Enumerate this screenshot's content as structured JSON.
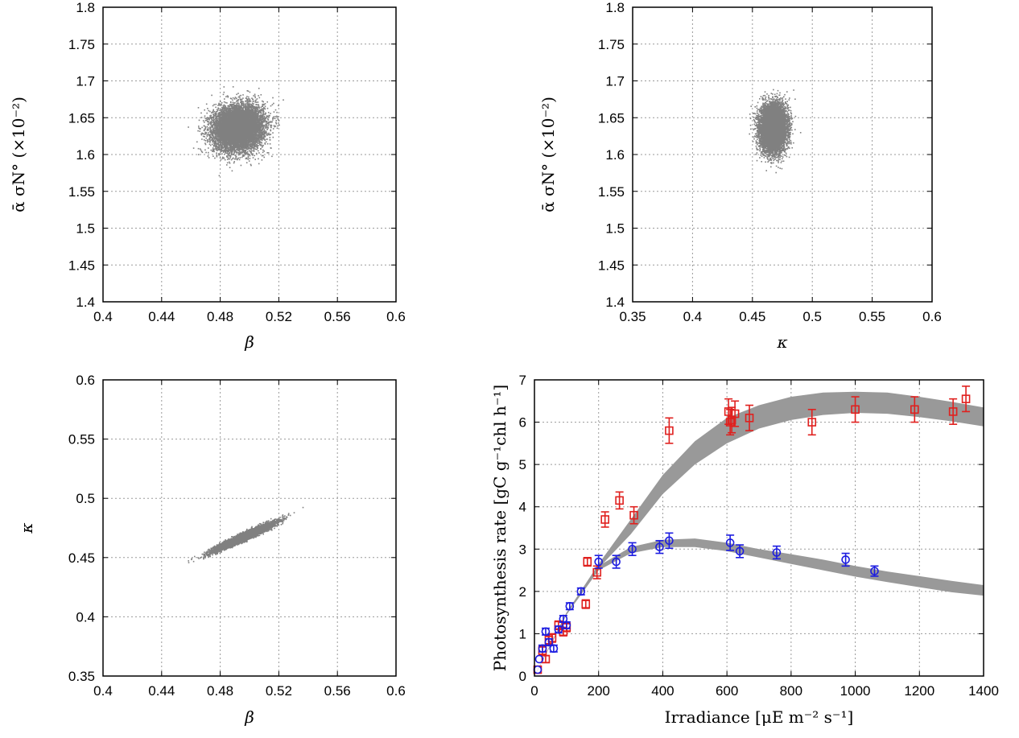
{
  "chart_data": [
    {
      "id": "p1",
      "type": "scatter",
      "xlabel": "β",
      "ylabel": "ᾱ σN° (×10⁻²)",
      "xlim": [
        0.4,
        0.6
      ],
      "ylim": [
        1.4,
        1.8
      ],
      "xticks": [
        "0.4",
        "0.44",
        "0.48",
        "0.52",
        "0.56",
        "0.6"
      ],
      "yticks": [
        "1.4",
        "1.45",
        "1.5",
        "1.55",
        "1.6",
        "1.65",
        "1.7",
        "1.75",
        "1.8"
      ],
      "grid": true,
      "cloud": {
        "center_x": 0.492,
        "center_y": 1.637,
        "spread_x": 0.022,
        "spread_y": 0.039,
        "correlation": 0.1,
        "color": "#808080"
      }
    },
    {
      "id": "p2",
      "type": "scatter",
      "xlabel": "κ",
      "ylabel": "ᾱ σN° (×10⁻²)",
      "xlim": [
        0.35,
        0.6
      ],
      "ylim": [
        1.4,
        1.8
      ],
      "xticks": [
        "0.35",
        "0.4",
        "0.45",
        "0.5",
        "0.55",
        "0.6"
      ],
      "yticks": [
        "1.4",
        "1.45",
        "1.5",
        "1.55",
        "1.6",
        "1.65",
        "1.7",
        "1.75",
        "1.8"
      ],
      "grid": true,
      "cloud": {
        "center_x": 0.467,
        "center_y": 1.637,
        "spread_x": 0.014,
        "spread_y": 0.04,
        "correlation": 0.05,
        "color": "#808080"
      }
    },
    {
      "id": "p3",
      "type": "scatter",
      "xlabel": "β",
      "ylabel": "κ",
      "xlim": [
        0.4,
        0.6
      ],
      "ylim": [
        0.35,
        0.6
      ],
      "xticks": [
        "0.4",
        "0.44",
        "0.48",
        "0.52",
        "0.56",
        "0.6"
      ],
      "yticks": [
        "0.35",
        "0.4",
        "0.45",
        "0.5",
        "0.55",
        "0.6"
      ],
      "grid": true,
      "cloud": {
        "center_x": 0.496,
        "center_y": 0.468,
        "spread_x": 0.024,
        "spread_y": 0.014,
        "correlation": 0.96,
        "color": "#808080"
      }
    },
    {
      "id": "p4",
      "type": "scatter",
      "xlabel": "Irradiance [μE m⁻² s⁻¹]",
      "ylabel": "Photosynthesis rate [gC g⁻¹chl h⁻¹]",
      "xlim": [
        0,
        1400
      ],
      "ylim": [
        0,
        7
      ],
      "xticks": [
        "0",
        "200",
        "400",
        "600",
        "800",
        "1000",
        "1200",
        "1400"
      ],
      "yticks": [
        "0",
        "1",
        "2",
        "3",
        "4",
        "5",
        "6",
        "7"
      ],
      "grid": true,
      "bands": [
        {
          "color": "#999999",
          "x": [
            0,
            100,
            200,
            300,
            400,
            500,
            600,
            700,
            800,
            900,
            1000,
            1100,
            1200,
            1300,
            1400
          ],
          "y_low": [
            0,
            1.45,
            2.55,
            3.35,
            4.3,
            5.0,
            5.5,
            5.85,
            6.05,
            6.17,
            6.22,
            6.2,
            6.12,
            6.02,
            5.9
          ],
          "y_high": [
            0,
            1.5,
            2.65,
            3.7,
            4.75,
            5.55,
            6.1,
            6.4,
            6.6,
            6.7,
            6.72,
            6.7,
            6.6,
            6.48,
            6.35
          ]
        },
        {
          "color": "#999999",
          "x": [
            0,
            100,
            200,
            300,
            400,
            500,
            600,
            700,
            800,
            900,
            1000,
            1100,
            1200,
            1300,
            1400
          ],
          "y_low": [
            0,
            1.45,
            2.5,
            2.9,
            3.05,
            3.05,
            2.95,
            2.8,
            2.65,
            2.5,
            2.35,
            2.22,
            2.1,
            1.98,
            1.9
          ],
          "y_high": [
            0,
            1.5,
            2.6,
            3.05,
            3.22,
            3.25,
            3.15,
            3.0,
            2.88,
            2.75,
            2.6,
            2.47,
            2.36,
            2.25,
            2.15
          ]
        }
      ],
      "series": [
        {
          "marker": "square",
          "color": "#e0201e",
          "x": [
            10,
            25,
            35,
            45,
            55,
            75,
            90,
            100,
            160,
            165,
            195,
            220,
            265,
            310,
            420,
            605,
            610,
            615,
            625,
            670,
            865,
            1000,
            1185,
            1305,
            1345
          ],
          "y": [
            0.15,
            0.6,
            0.4,
            0.85,
            0.9,
            1.2,
            1.05,
            1.15,
            1.7,
            2.7,
            2.45,
            3.7,
            4.15,
            3.8,
            5.8,
            6.25,
            6.0,
            6.05,
            6.2,
            6.1,
            6.0,
            6.3,
            6.3,
            6.25,
            6.55
          ],
          "err": [
            0.05,
            0.1,
            0.08,
            0.1,
            0.1,
            0.1,
            0.1,
            0.1,
            0.1,
            0.1,
            0.15,
            0.18,
            0.2,
            0.2,
            0.3,
            0.3,
            0.3,
            0.3,
            0.3,
            0.3,
            0.3,
            0.3,
            0.3,
            0.3,
            0.3
          ]
        },
        {
          "marker": "circle",
          "color": "#1c1ce0",
          "x": [
            10,
            15,
            25,
            35,
            45,
            60,
            75,
            90,
            100,
            110,
            145,
            200,
            255,
            305,
            390,
            420,
            610,
            640,
            755,
            970,
            1060
          ],
          "y": [
            0.15,
            0.4,
            0.65,
            1.05,
            0.8,
            0.65,
            1.1,
            1.35,
            1.2,
            1.65,
            2.0,
            2.7,
            2.7,
            3.0,
            3.05,
            3.2,
            3.15,
            2.95,
            2.92,
            2.75,
            2.48
          ],
          "err": [
            0.05,
            0.05,
            0.08,
            0.08,
            0.08,
            0.08,
            0.08,
            0.08,
            0.08,
            0.08,
            0.08,
            0.15,
            0.15,
            0.15,
            0.15,
            0.18,
            0.18,
            0.15,
            0.15,
            0.15,
            0.12
          ]
        }
      ]
    }
  ]
}
